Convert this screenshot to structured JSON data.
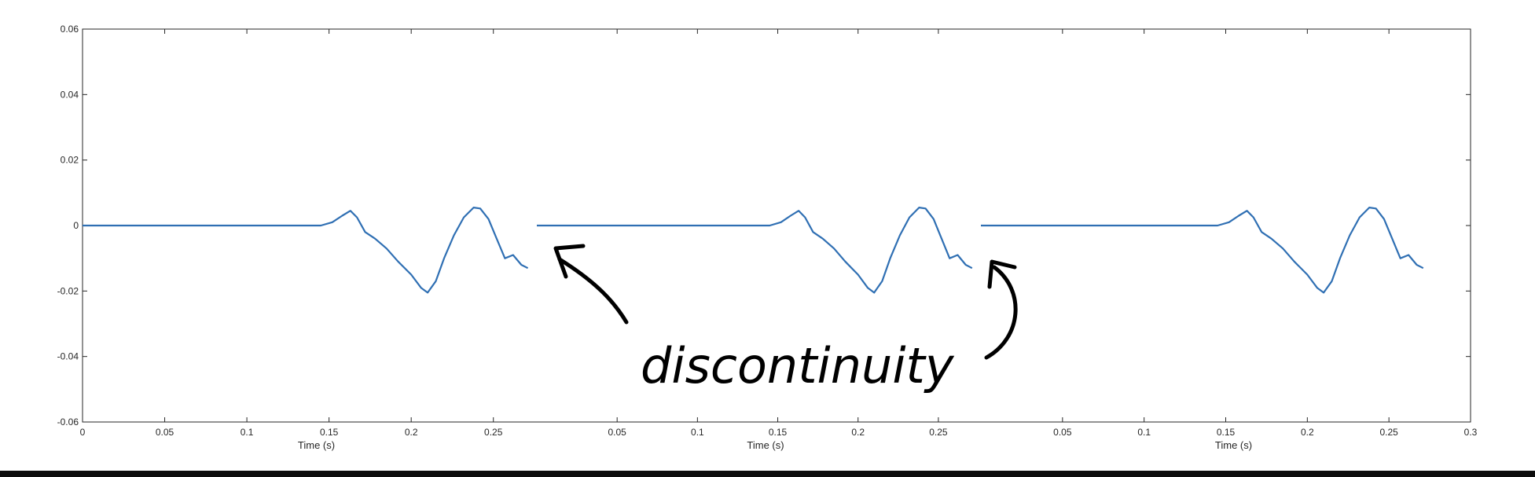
{
  "chart_data": {
    "type": "line",
    "panels": [
      {
        "xlabel": "Time (s)",
        "xlim": [
          0,
          0.275
        ],
        "xticks": [
          "0",
          "0.05",
          "0.1",
          "0.15",
          "0.2",
          "0.25"
        ],
        "ylim": [
          -0.06,
          0.06
        ],
        "yticks": [
          "0.06",
          "0.04",
          "0.02",
          "0",
          "-0.02",
          "-0.04",
          "-0.06"
        ],
        "color": "#2f6fb3"
      },
      {
        "xlabel": "Time (s)",
        "xlim": [
          0,
          0.275
        ],
        "xticks": [
          "0.05",
          "0.1",
          "0.15",
          "0.2",
          "0.25"
        ],
        "ylim": [
          -0.06,
          0.06
        ],
        "color": "#2f6fb3"
      },
      {
        "xlabel": "Time (s)",
        "xlim": [
          0,
          0.3
        ],
        "xticks": [
          "0.05",
          "0.1",
          "0.15",
          "0.2",
          "0.25",
          "0.3"
        ],
        "ylim": [
          -0.06,
          0.06
        ],
        "color": "#2f6fb3"
      }
    ],
    "series": [
      {
        "x": [
          0,
          0.05,
          0.1,
          0.145,
          0.152,
          0.158,
          0.163,
          0.167,
          0.172,
          0.178,
          0.185,
          0.192,
          0.2,
          0.206,
          0.21,
          0.215,
          0.22,
          0.226,
          0.232,
          0.238,
          0.242,
          0.247,
          0.252,
          0.257,
          0.262,
          0.267,
          0.271
        ],
        "y": [
          0,
          0,
          0,
          0,
          0.001,
          0.003,
          0.0045,
          0.0025,
          -0.002,
          -0.004,
          -0.007,
          -0.011,
          -0.015,
          -0.019,
          -0.0205,
          -0.017,
          -0.01,
          -0.003,
          0.0025,
          0.0055,
          0.0052,
          0.002,
          -0.004,
          -0.01,
          -0.009,
          -0.012,
          -0.013
        ]
      }
    ],
    "annotation": "discontinuity"
  }
}
